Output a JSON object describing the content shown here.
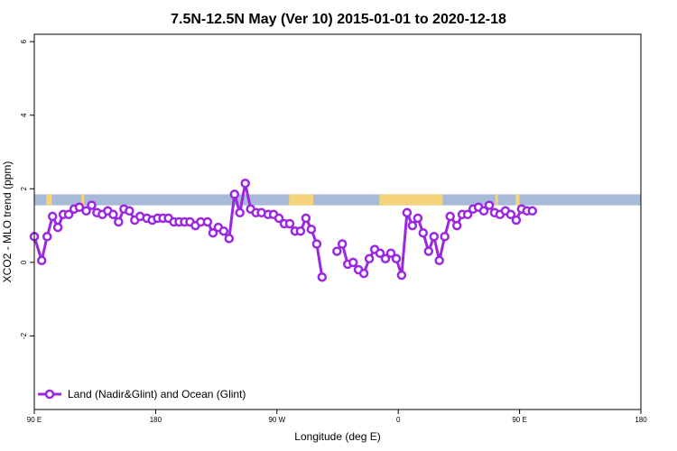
{
  "chart_data": {
    "type": "line",
    "title": "7.5N-12.5N May (Ver 10)   2015-01-01 to 2020-12-18",
    "xlabel": "Longitude (deg E)",
    "ylabel": "XCO2 - MLO trend (ppm)",
    "xlim": [
      90,
      540
    ],
    "ylim": [
      -4,
      6.2
    ],
    "x_ticks": [
      {
        "value": 90,
        "label": "90 E"
      },
      {
        "value": 180,
        "label": "180"
      },
      {
        "value": 270,
        "label": "90 W"
      },
      {
        "value": 360,
        "label": "0"
      },
      {
        "value": 450,
        "label": "90 E"
      },
      {
        "value": 540,
        "label": "180"
      }
    ],
    "y_ticks": [
      {
        "value": -2,
        "label": "-2"
      },
      {
        "value": 0,
        "label": "0"
      },
      {
        "value": 2,
        "label": "2"
      },
      {
        "value": 4,
        "label": "4"
      },
      {
        "value": 6,
        "label": "6"
      }
    ],
    "grid": false,
    "legend_position": "bottom-left",
    "land_ocean_band": {
      "y_range": [
        1.55,
        1.85
      ],
      "ocean_color": "#a7bbd8",
      "land_color": "#f5d37a",
      "land_segments": [
        [
          99,
          103
        ],
        [
          125,
          127
        ],
        [
          279,
          297
        ],
        [
          346,
          393
        ],
        [
          432,
          434
        ],
        [
          447,
          450
        ]
      ]
    },
    "series": [
      {
        "name": "Land (Nadir&Glint) and Ocean (Glint)",
        "color": "#9b27e0",
        "segments": [
          [
            [
              90.0,
              0.7
            ],
            [
              95.5,
              0.05
            ],
            [
              99.5,
              0.7
            ],
            [
              103.5,
              1.25
            ],
            [
              107.5,
              0.95
            ],
            [
              111.5,
              1.3
            ],
            [
              115.5,
              1.3
            ],
            [
              119.5,
              1.45
            ],
            [
              123.5,
              1.5
            ],
            [
              128.5,
              1.4
            ],
            [
              132.5,
              1.55
            ],
            [
              136.5,
              1.35
            ],
            [
              140.5,
              1.3
            ],
            [
              144.5,
              1.4
            ],
            [
              148.5,
              1.3
            ],
            [
              152.5,
              1.1
            ],
            [
              156.5,
              1.45
            ],
            [
              160.5,
              1.4
            ],
            [
              164.5,
              1.15
            ],
            [
              168.5,
              1.25
            ],
            [
              173.5,
              1.2
            ],
            [
              177.5,
              1.15
            ],
            [
              181.5,
              1.2
            ],
            [
              185.5,
              1.2
            ],
            [
              189.5,
              1.2
            ],
            [
              193.5,
              1.1
            ],
            [
              197.5,
              1.1
            ],
            [
              201.5,
              1.1
            ],
            [
              205.5,
              1.1
            ],
            [
              209.5,
              1.0
            ],
            [
              213.5,
              1.1
            ],
            [
              218.5,
              1.1
            ],
            [
              222.5,
              0.8
            ],
            [
              226.5,
              0.95
            ],
            [
              230.5,
              0.85
            ],
            [
              234.5,
              0.65
            ],
            [
              238.5,
              1.85
            ],
            [
              242.5,
              1.35
            ],
            [
              246.5,
              2.15
            ],
            [
              250.5,
              1.45
            ],
            [
              254.5,
              1.35
            ],
            [
              258.5,
              1.35
            ],
            [
              263.5,
              1.3
            ],
            [
              267.5,
              1.3
            ],
            [
              271.5,
              1.2
            ],
            [
              275.5,
              1.05
            ],
            [
              279.5,
              1.05
            ],
            [
              283.5,
              0.85
            ],
            [
              287.5,
              0.85
            ],
            [
              291.5,
              1.2
            ],
            [
              295.5,
              0.9
            ],
            [
              299.5,
              0.5
            ],
            [
              303.5,
              -0.4
            ]
          ],
          [
            [
              314.5,
              0.3
            ],
            [
              318.5,
              0.5
            ],
            [
              322.5,
              -0.05
            ],
            [
              326.5,
              0.0
            ],
            [
              330.5,
              -0.2
            ],
            [
              334.5,
              -0.3
            ],
            [
              338.5,
              0.1
            ],
            [
              342.5,
              0.35
            ],
            [
              346.5,
              0.25
            ],
            [
              350.5,
              0.1
            ],
            [
              354.5,
              0.25
            ],
            [
              358.5,
              0.1
            ],
            [
              362.5,
              -0.35
            ],
            [
              366.5,
              1.35
            ],
            [
              370.5,
              1.0
            ],
            [
              374.5,
              1.2
            ],
            [
              378.5,
              0.8
            ],
            [
              382.5,
              0.3
            ],
            [
              386.5,
              0.7
            ],
            [
              390.5,
              0.05
            ],
            [
              394.5,
              0.7
            ],
            [
              398.5,
              1.25
            ],
            [
              403.5,
              1.0
            ],
            [
              407.5,
              1.3
            ],
            [
              411.5,
              1.3
            ],
            [
              415.5,
              1.45
            ],
            [
              419.5,
              1.5
            ],
            [
              423.5,
              1.4
            ],
            [
              427.5,
              1.55
            ],
            [
              431.5,
              1.35
            ],
            [
              435.5,
              1.3
            ],
            [
              439.5,
              1.4
            ],
            [
              443.5,
              1.3
            ],
            [
              447.5,
              1.15
            ],
            [
              451.5,
              1.45
            ],
            [
              455.5,
              1.4
            ],
            [
              459.5,
              1.4
            ]
          ]
        ]
      }
    ]
  }
}
